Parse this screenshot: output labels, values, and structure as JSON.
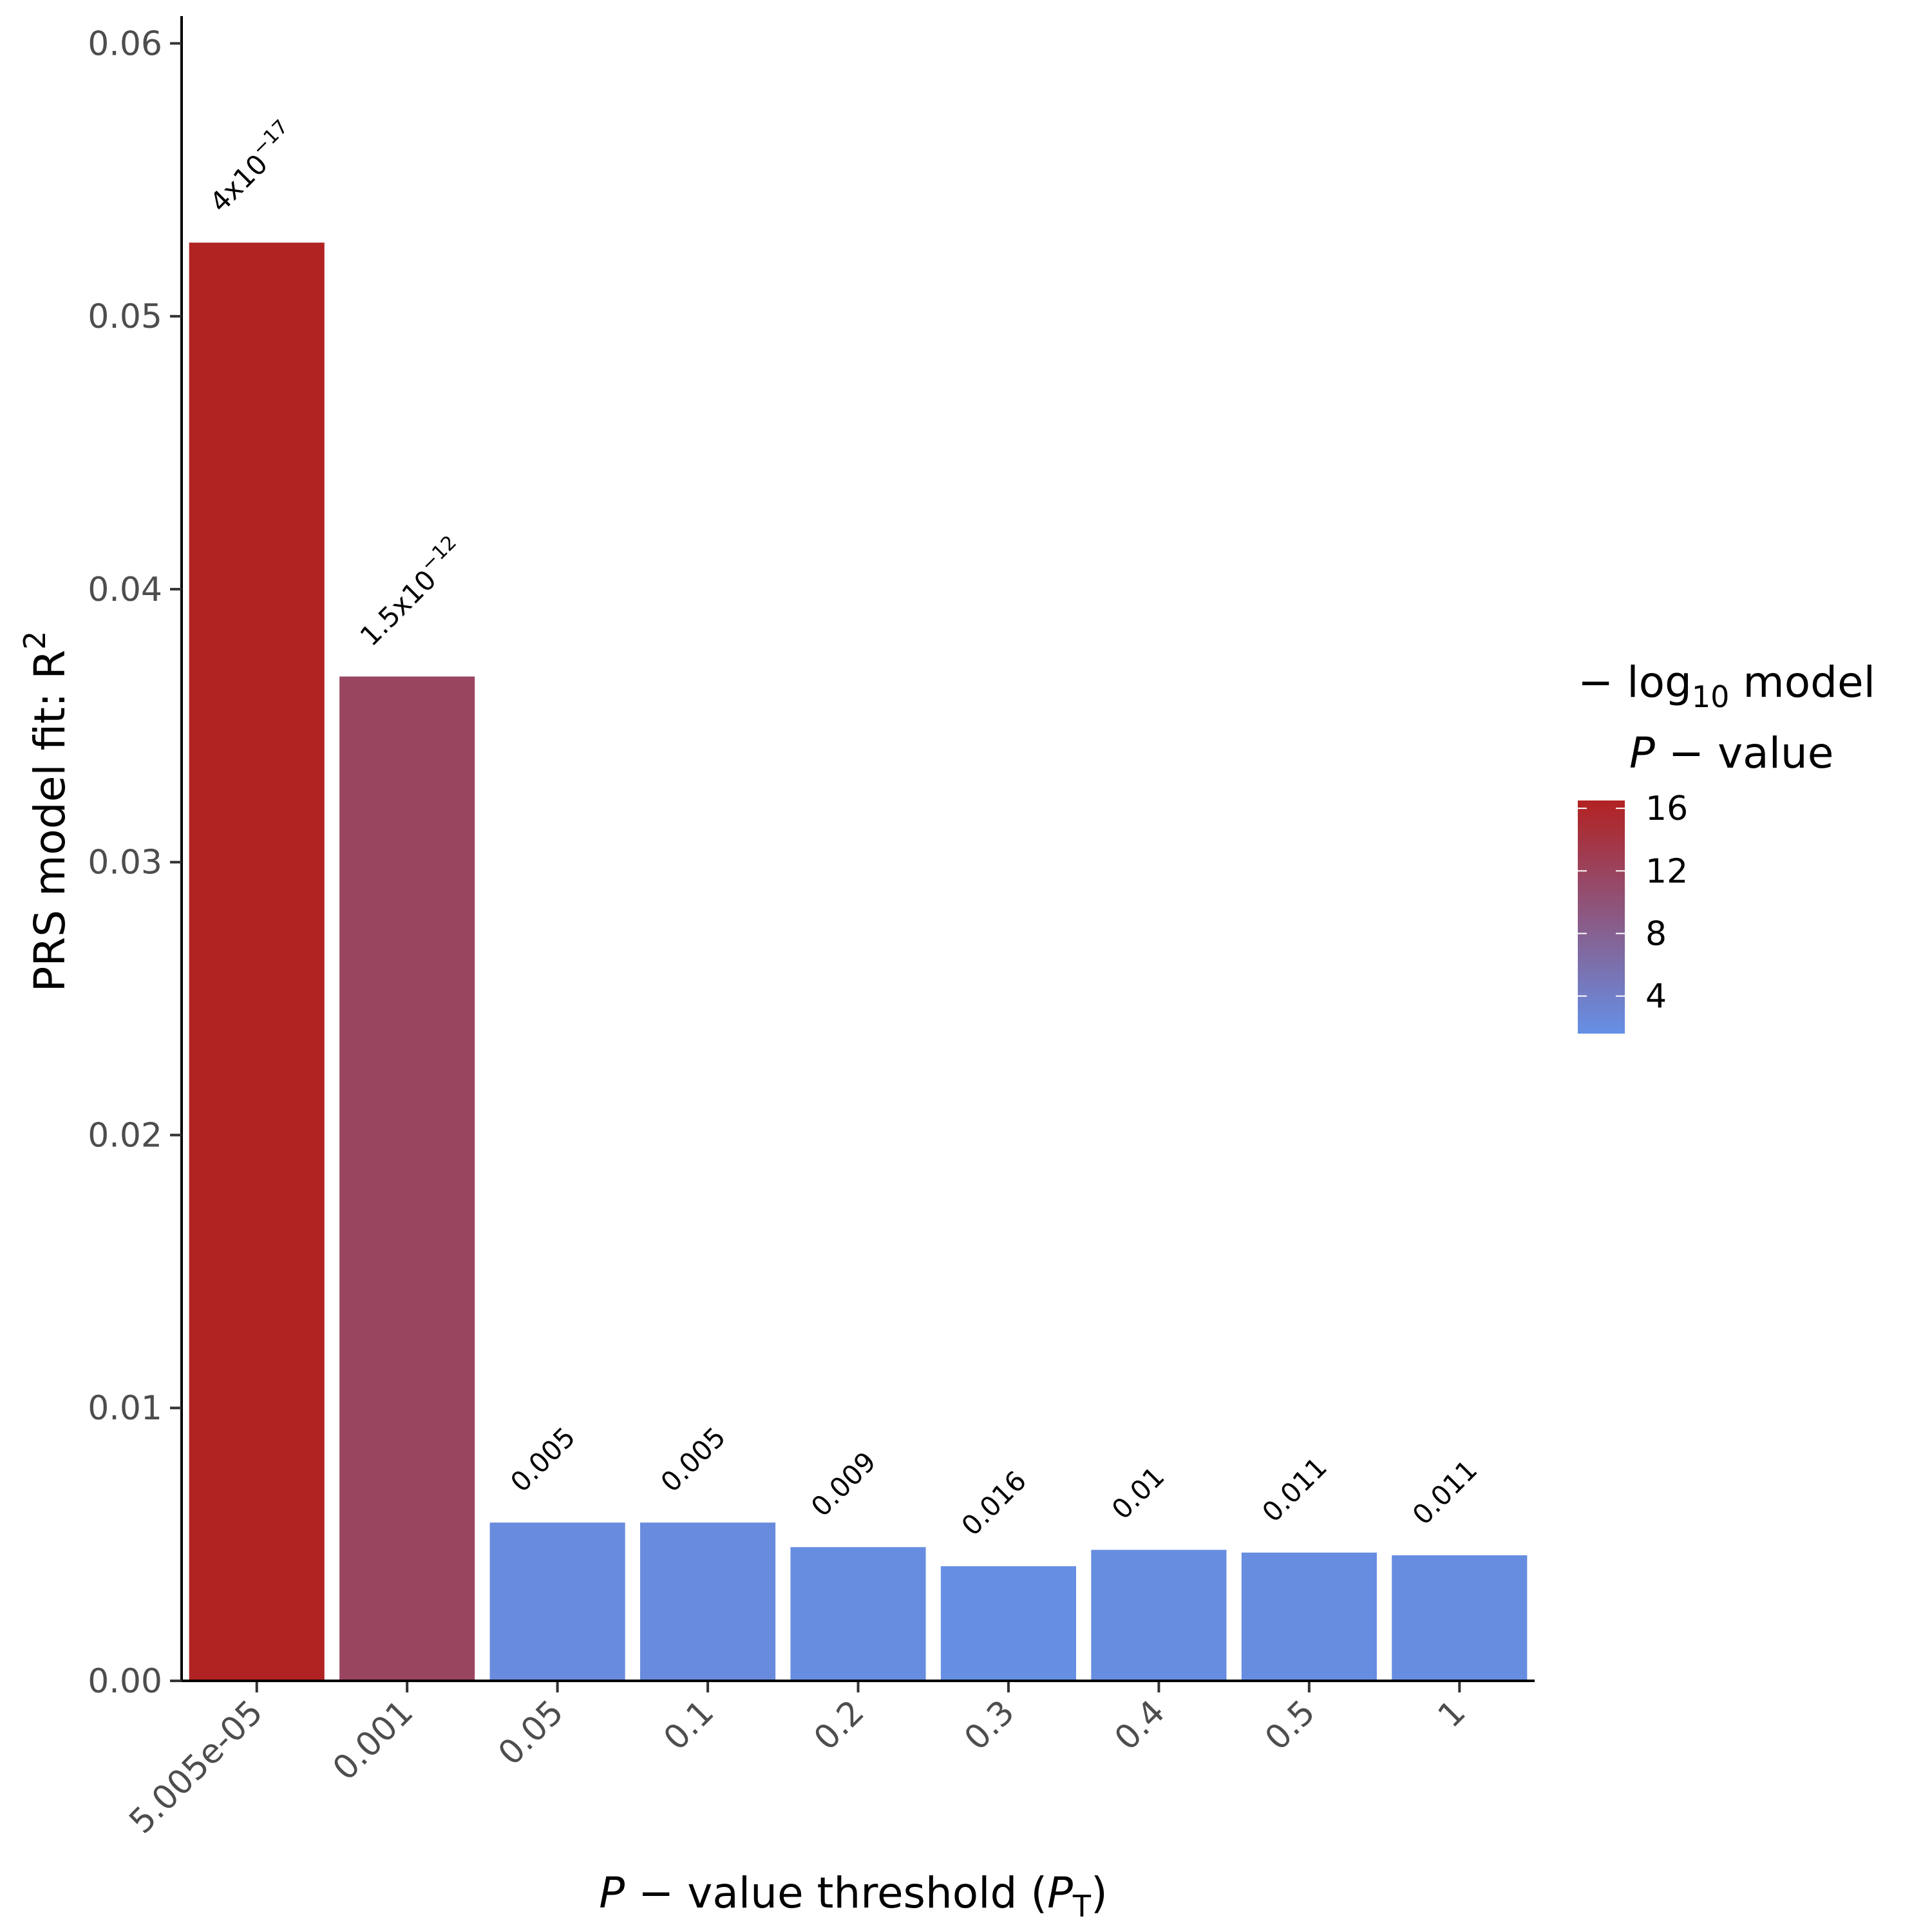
{
  "chart_data": {
    "type": "bar",
    "categories": [
      "5.005e-05",
      "0.001",
      "0.05",
      "0.1",
      "0.2",
      "0.3",
      "0.4",
      "0.5",
      "1"
    ],
    "values": [
      0.0527,
      0.0368,
      0.0058,
      0.0058,
      0.0049,
      0.0042,
      0.0048,
      0.0047,
      0.0046
    ],
    "neg_log10_p": [
      16.4,
      11.8,
      2.3,
      2.3,
      2.05,
      1.8,
      2.0,
      1.96,
      1.96
    ],
    "bar_labels": [
      {
        "base": "4x10",
        "exp": "−17"
      },
      {
        "base": "1.5x10",
        "exp": "−12"
      },
      {
        "base": "0.005",
        "exp": ""
      },
      {
        "base": "0.005",
        "exp": ""
      },
      {
        "base": "0.009",
        "exp": ""
      },
      {
        "base": "0.016",
        "exp": ""
      },
      {
        "base": "0.01",
        "exp": ""
      },
      {
        "base": "0.011",
        "exp": ""
      },
      {
        "base": "0.011",
        "exp": ""
      }
    ],
    "ylim": [
      0,
      0.061
    ],
    "yticks": [
      0.0,
      0.01,
      0.02,
      0.03,
      0.04,
      0.05,
      0.06
    ],
    "ytick_labels": [
      "0.00",
      "0.01",
      "0.02",
      "0.03",
      "0.04",
      "0.05",
      "0.06"
    ],
    "xlabel": {
      "italic": "P",
      "rest": " − value threshold (",
      "italic2": "P",
      "sub": "T",
      "close": ")"
    },
    "ylabel": {
      "text": "PRS model fit:  R",
      "sup": "2"
    },
    "legend": {
      "title_line1": {
        "prefix": "− log",
        "sub": "10",
        "suffix": " model"
      },
      "title_line2": {
        "italic": "P",
        "rest": " − value"
      },
      "ticks": [
        16,
        12,
        8,
        4
      ],
      "tick_labels": [
        "16",
        "12",
        "8",
        "4"
      ],
      "range": [
        1.6,
        16.5
      ],
      "low_color": "#6590E6",
      "high_color": "#B22222",
      "placement": "right"
    },
    "grid": false
  }
}
